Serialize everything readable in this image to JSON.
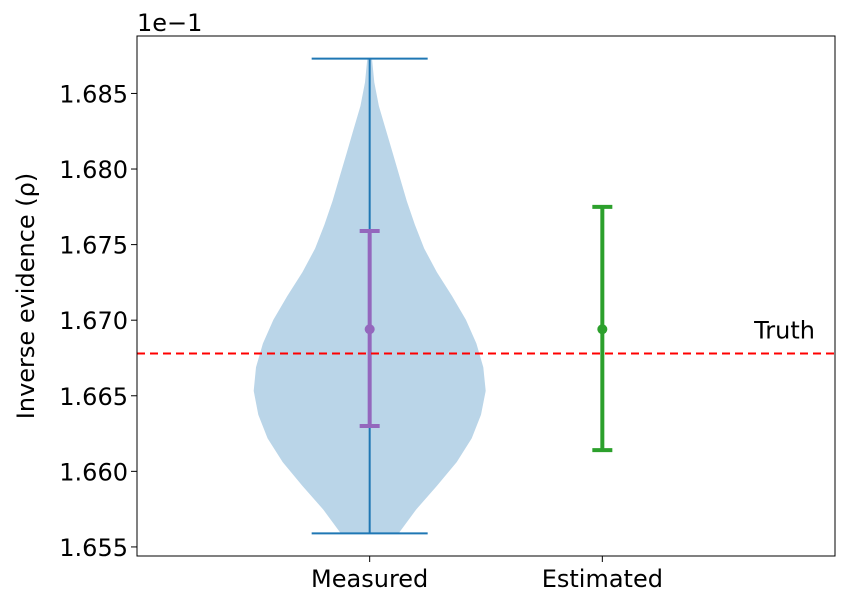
{
  "chart_data": {
    "type": "violin",
    "scale_label": "1e−1",
    "ylabel": "Inverse evidence (ρ)",
    "xlabel": "",
    "categories": [
      "Measured",
      "Estimated"
    ],
    "yticks": [
      "1.655",
      "1.660",
      "1.665",
      "1.670",
      "1.675",
      "1.680",
      "1.685"
    ],
    "ytick_values": [
      1.655,
      1.66,
      1.665,
      1.67,
      1.675,
      1.68,
      1.685
    ],
    "ylim": [
      1.6544,
      1.6888
    ],
    "xlim": [
      0.0,
      3.0
    ],
    "grid": false,
    "measured": {
      "violin_min": 1.6559,
      "violin_max": 1.6873,
      "mean": 1.6694,
      "error_low": 1.663,
      "error_high": 1.6759,
      "violin_color": "#bad5e8",
      "line_color": "#1f77b4",
      "errorbar_color": "#9467bd"
    },
    "estimated": {
      "mean": 1.6694,
      "error_low": 1.6614,
      "error_high": 1.6775,
      "color": "#2ca02c"
    },
    "truth": {
      "value": 1.6678,
      "label": "Truth",
      "color": "#ff0000"
    }
  }
}
